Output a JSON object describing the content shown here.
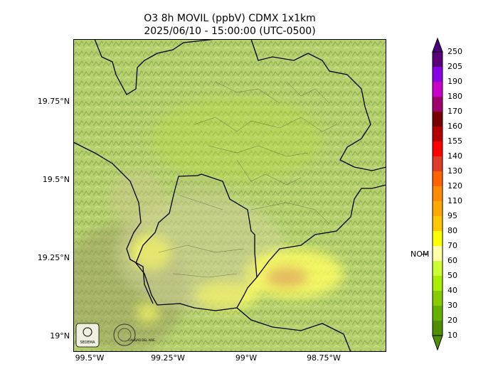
{
  "title_line1": "O3 8h MOVIL (ppbV) CDMX 1x1km",
  "title_line2": "2025/06/10 - 15:00:00 (UTC-0500)",
  "lat_ticks": [
    "19.75°N",
    "19.5°N",
    "19.25°N",
    "19°N"
  ],
  "lon_ticks": [
    "99.5°W",
    "99.25°W",
    "99°W",
    "98.75°W"
  ],
  "colorbar": {
    "labels": [
      "250",
      "205",
      "190",
      "180",
      "170",
      "160",
      "155",
      "140",
      "130",
      "120",
      "110",
      "95",
      "80",
      "70",
      "60",
      "50",
      "40",
      "30",
      "20",
      "10"
    ],
    "colors": [
      "#5a007a",
      "#8a00e6",
      "#c800c8",
      "#a00070",
      "#7a0000",
      "#b40000",
      "#ff0000",
      "#e03c28",
      "#ff6400",
      "#ff8c00",
      "#ffaa00",
      "#ffc800",
      "#ffff00",
      "#ffffa8",
      "#ccff33",
      "#aaee00",
      "#88cc00",
      "#66b000",
      "#509000"
    ],
    "nom_label": "NOM",
    "nom_value": 60
  },
  "logos": {
    "left_text": "SEDEMA",
    "right_text": "CALIDAD DEL AIRE"
  },
  "colors": {
    "background_green": "#b4d06e",
    "boundary": "#000000"
  }
}
